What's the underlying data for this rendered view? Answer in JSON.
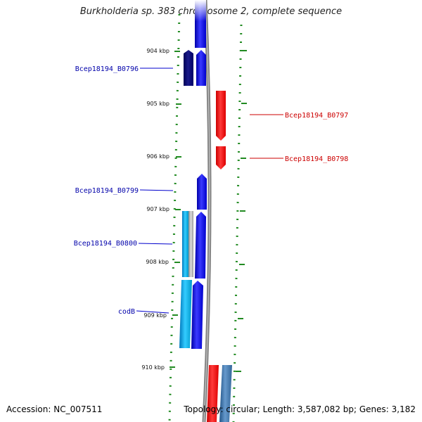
{
  "title": "Burkholderia sp. 383 chromosome 2, complete sequence",
  "footer": {
    "accession": "Accession: NC_007511",
    "summary": "Topology: circular; Length: 3,587,082 bp; Genes: 3,182"
  },
  "colors": {
    "minus_strand": "#0000ee",
    "plus_strand": "#ee0000",
    "ticks": "#228b22",
    "backbone": "#808080"
  },
  "ticks": [
    "904 kbp",
    "905 kbp",
    "906 kbp",
    "907 kbp",
    "908 kbp",
    "909 kbp",
    "910 kbp"
  ],
  "gene_labels": {
    "b0796": "Bcep18194_B0796",
    "b0797": "Bcep18194_B0797",
    "b0798": "Bcep18194_B0798",
    "b0799": "Bcep18194_B0799",
    "b0800": "Bcep18194_B0800",
    "codB": "codB"
  }
}
